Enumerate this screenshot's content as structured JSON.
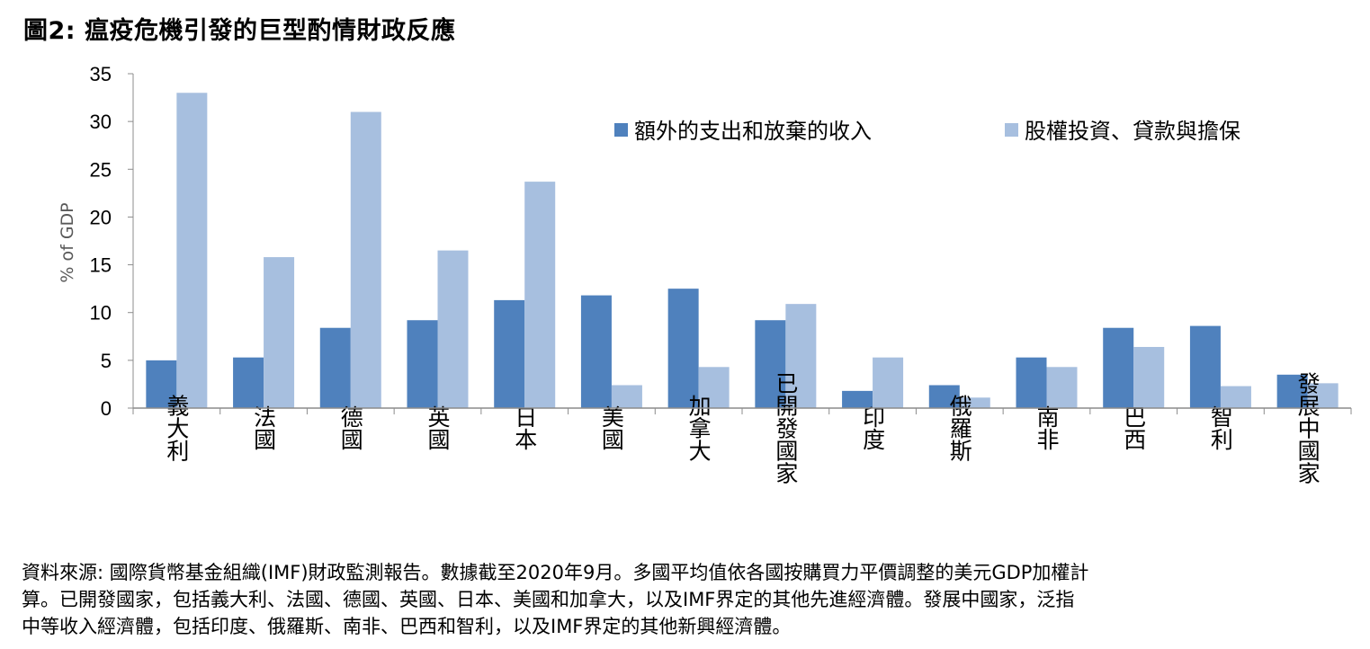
{
  "title": "圖2: 瘟疫危機引發的巨型酌情財政反應",
  "source_note": {
    "line1": "資料來源: 國際貨幣基金組織(IMF)財政監測報告。數據截至2020年9月。多國平均值依各國按購買力平價調整的美元GDP加權計",
    "line2": "算。已開發國家，包括義大利、法國、德國、英國、日本、美國和加拿大，以及IMF界定的其他先進經濟體。發展中國家，泛指",
    "line3": "中等收入經濟體，包括印度、俄羅斯、南非、巴西和智利，以及IMF界定的其他新興經濟體。"
  },
  "chart_data": {
    "type": "bar",
    "title": "",
    "xlabel": "",
    "ylabel": "% of GDP",
    "ylim": [
      0,
      35
    ],
    "yticks": [
      0,
      5,
      10,
      15,
      20,
      25,
      30,
      35
    ],
    "grid": false,
    "legend_position": "top-right",
    "categories": [
      "義大利",
      "法國",
      "德國",
      "英國",
      "日本",
      "美國",
      "加拿大",
      "已開發國家",
      "印度",
      "俄羅斯",
      "南非",
      "巴西",
      "智利",
      "發展中國家"
    ],
    "series": [
      {
        "name": "額外的支出和放棄的收入",
        "color": "#4f81bd",
        "values": [
          5.0,
          5.3,
          8.4,
          9.2,
          11.3,
          11.8,
          12.5,
          9.2,
          1.8,
          2.4,
          5.3,
          8.4,
          8.6,
          3.5
        ]
      },
      {
        "name": "股權投資、貸款與擔保",
        "color": "#a7bfdf",
        "values": [
          33.0,
          15.8,
          31.0,
          16.5,
          23.7,
          2.4,
          4.3,
          10.9,
          5.3,
          1.1,
          4.3,
          6.4,
          2.3,
          2.6
        ]
      }
    ]
  }
}
